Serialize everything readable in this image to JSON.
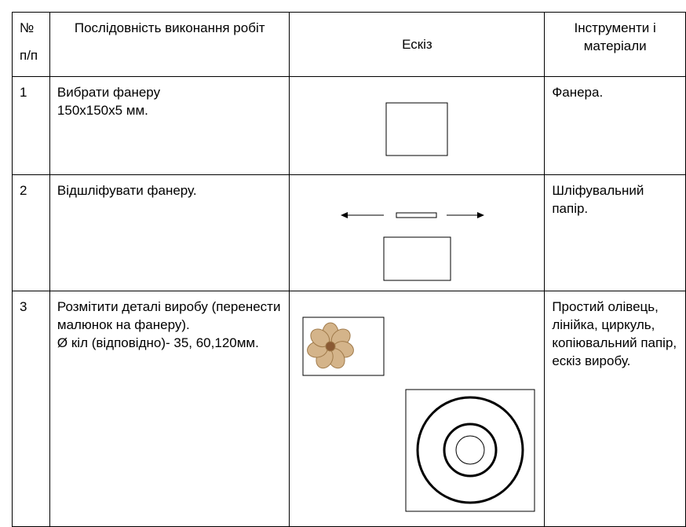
{
  "table": {
    "header": [
      [
        "№",
        "п/п"
      ],
      "Послідовність виконання робіт",
      "Ескіз",
      "Інструменти і матеріали"
    ],
    "rows": [
      [
        "1",
        [
          "Вибрати фанеру",
          "150х150х5 мм."
        ],
        "Фанера."
      ],
      [
        "2",
        [
          "Відшліфувати фанеру."
        ],
        "Шліфувальний папір."
      ],
      [
        "3",
        [
          "Розмітити деталі виробу (перенести малюнок на фанеру).",
          "Ø кіл (відповідно)- 35, 60,120мм."
        ],
        "Простий олівець, лінійка, циркуль, копіювальний папір, ескіз виробу."
      ]
    ]
  }
}
